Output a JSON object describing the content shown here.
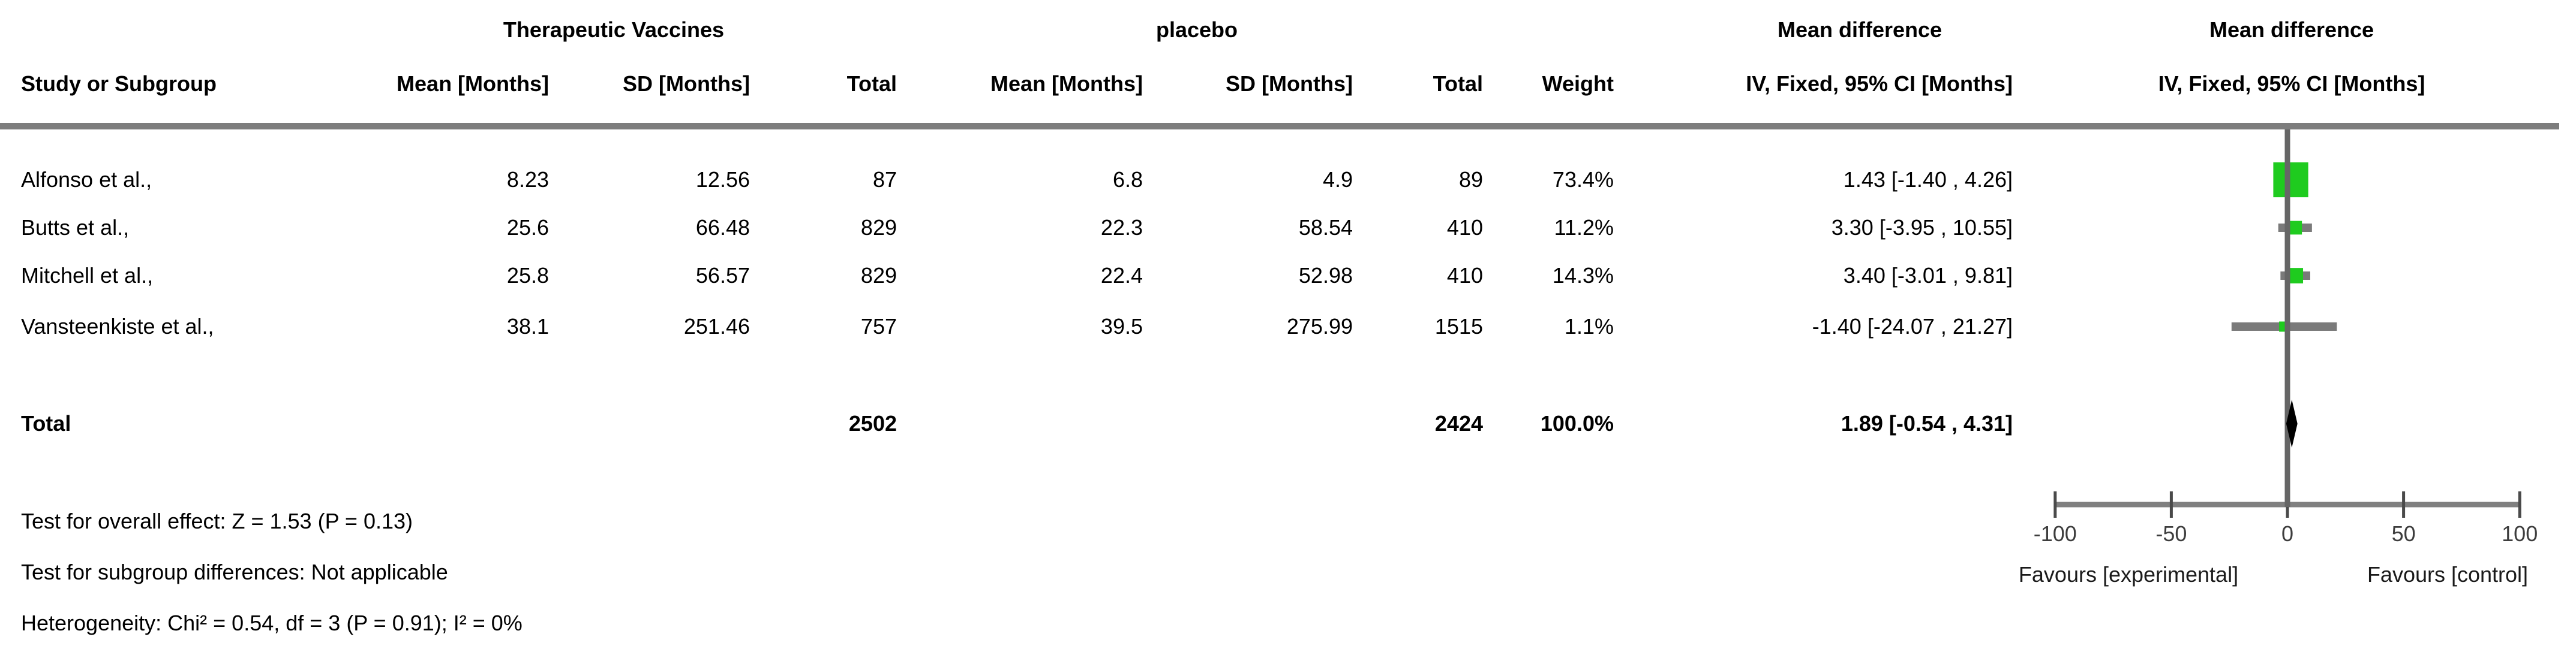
{
  "header": {
    "group_experimental": "Therapeutic Vaccines",
    "group_control": "placebo",
    "md_text_col": "Mean difference",
    "md_plot_col": "Mean difference",
    "study": "Study or Subgroup",
    "mean_e": "Mean [Months]",
    "sd_e": "SD [Months]",
    "total_e": "Total",
    "mean_c": "Mean [Months]",
    "sd_c": "SD [Months]",
    "total_c": "Total",
    "weight": "Weight",
    "ci_text_col": "IV, Fixed, 95% CI [Months]",
    "ci_plot_col": "IV, Fixed, 95% CI [Months]"
  },
  "table": {
    "rows": [
      {
        "study": "Alfonso et al.,",
        "mean1": "8.23",
        "sd1": "12.56",
        "total1": "87",
        "mean2": "6.8",
        "sd2": "4.9",
        "total2": "89",
        "weight": "73.4%",
        "ci": "1.43 [-1.40 , 4.26]"
      },
      {
        "study": "Butts et al.,",
        "mean1": "25.6",
        "sd1": "66.48",
        "total1": "829",
        "mean2": "22.3",
        "sd2": "58.54",
        "total2": "410",
        "weight": "11.2%",
        "ci": "3.30 [-3.95 , 10.55]"
      },
      {
        "study": "Mitchell et al.,",
        "mean1": "25.8",
        "sd1": "56.57",
        "total1": "829",
        "mean2": "22.4",
        "sd2": "52.98",
        "total2": "410",
        "weight": "14.3%",
        "ci": "3.40 [-3.01 , 9.81]"
      },
      {
        "study": "Vansteenkiste et al.,",
        "mean1": "38.1",
        "sd1": "251.46",
        "total1": "757",
        "mean2": "39.5",
        "sd2": "275.99",
        "total2": "1515",
        "weight": "1.1%",
        "ci": "-1.40 [-24.07 , 21.27]"
      }
    ],
    "total_row": {
      "study": "Total",
      "total1": "2502",
      "total2": "2424",
      "weight": "100.0%",
      "ci": "1.89 [-0.54 , 4.31]"
    }
  },
  "footnotes": {
    "overall_effect": "Test for overall effect: Z = 1.53 (P = 0.13)",
    "subgroup_differences": "Test for subgroup differences: Not applicable",
    "heterogeneity": "Heterogeneity: Chi² = 0.54, df = 3 (P = 0.91); I² = 0%"
  },
  "axis_labels": {
    "favours_left": "Favours [experimental]",
    "favours_right": "Favours [control]"
  },
  "colors": {
    "marker_green": "#1fcb1f",
    "ci_gray": "#7a7a7a",
    "axis_gray": "#808080",
    "zero_line_gray": "#666666",
    "rule_gray": "#7d7d7d",
    "diamond_black": "#000000"
  },
  "chart_data": {
    "type": "forest",
    "title": "Mean difference, IV, Fixed, 95% CI [Months]",
    "studies": [
      {
        "name": "Alfonso et al.,",
        "mean_e": 8.23,
        "sd_e": 12.56,
        "n_e": 87,
        "mean_c": 6.8,
        "sd_c": 4.9,
        "n_c": 89,
        "weight_pct": 73.4,
        "md": 1.43,
        "ci_low": -1.4,
        "ci_high": 4.26
      },
      {
        "name": "Butts et al.,",
        "mean_e": 25.6,
        "sd_e": 66.48,
        "n_e": 829,
        "mean_c": 22.3,
        "sd_c": 58.54,
        "n_c": 410,
        "weight_pct": 11.2,
        "md": 3.3,
        "ci_low": -3.95,
        "ci_high": 10.55
      },
      {
        "name": "Mitchell et al.,",
        "mean_e": 25.8,
        "sd_e": 56.57,
        "n_e": 829,
        "mean_c": 22.4,
        "sd_c": 52.98,
        "n_c": 410,
        "weight_pct": 14.3,
        "md": 3.4,
        "ci_low": -3.01,
        "ci_high": 9.81
      },
      {
        "name": "Vansteenkiste et al.,",
        "mean_e": 38.1,
        "sd_e": 251.46,
        "n_e": 757,
        "mean_c": 39.5,
        "sd_c": 275.99,
        "n_c": 1515,
        "weight_pct": 1.1,
        "md": -1.4,
        "ci_low": -24.07,
        "ci_high": 21.27
      }
    ],
    "total": {
      "n_e": 2502,
      "n_c": 2424,
      "weight_pct": 100.0,
      "md": 1.89,
      "ci_low": -0.54,
      "ci_high": 4.31
    },
    "axis": {
      "ticks": [
        -100,
        -50,
        0,
        50,
        100
      ],
      "range": [
        -100,
        100
      ]
    },
    "stats": {
      "z": 1.53,
      "p_overall": 0.13,
      "chi2": 0.54,
      "df": 3,
      "p_het": 0.91,
      "i2_pct": 0
    }
  }
}
